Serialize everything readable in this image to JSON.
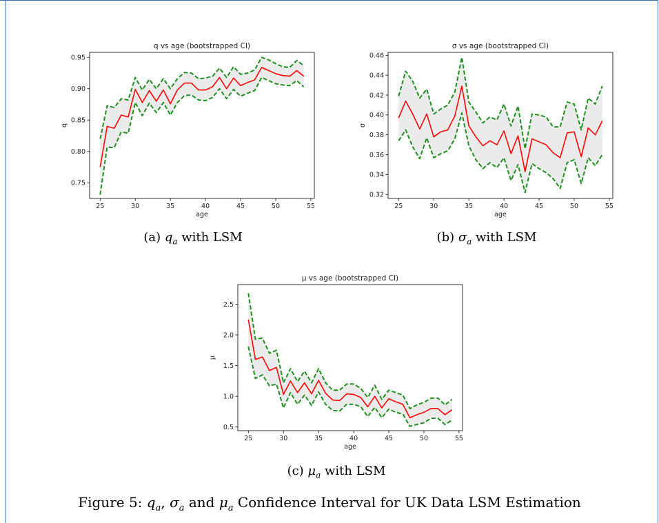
{
  "chart_data": [
    {
      "type": "line",
      "title": "q vs age (bootstrapped CI)",
      "xlabel": "age",
      "ylabel": "q",
      "xlim": [
        23.5,
        55.5
      ],
      "ylim": [
        0.725,
        0.958
      ],
      "xticks": [
        "25",
        "30",
        "35",
        "40",
        "45",
        "50",
        "55"
      ],
      "yticks": [
        "0.75",
        "0.80",
        "0.85",
        "0.90",
        "0.95"
      ],
      "grid": false,
      "x": [
        25,
        26,
        27,
        28,
        29,
        30,
        31,
        32,
        33,
        34,
        35,
        36,
        37,
        38,
        39,
        40,
        41,
        42,
        43,
        44,
        45,
        46,
        47,
        48,
        49,
        50,
        51,
        52,
        53,
        54
      ],
      "series": [
        {
          "role": "estimate",
          "color": "#ff0000",
          "values": [
            0.775,
            0.84,
            0.837,
            0.858,
            0.855,
            0.899,
            0.878,
            0.897,
            0.88,
            0.898,
            0.876,
            0.898,
            0.909,
            0.909,
            0.898,
            0.898,
            0.903,
            0.918,
            0.9,
            0.917,
            0.905,
            0.91,
            0.914,
            0.934,
            0.929,
            0.924,
            0.921,
            0.92,
            0.929,
            0.92
          ]
        },
        {
          "role": "upper",
          "color": "#1f8f1f",
          "values": [
            0.82,
            0.873,
            0.87,
            0.884,
            0.882,
            0.918,
            0.898,
            0.915,
            0.9,
            0.916,
            0.9,
            0.916,
            0.926,
            0.925,
            0.916,
            0.917,
            0.92,
            0.933,
            0.918,
            0.935,
            0.923,
            0.925,
            0.93,
            0.95,
            0.946,
            0.94,
            0.935,
            0.934,
            0.945,
            0.937
          ]
        },
        {
          "role": "lower",
          "color": "#1f8f1f",
          "values": [
            0.731,
            0.807,
            0.806,
            0.831,
            0.829,
            0.878,
            0.857,
            0.877,
            0.862,
            0.878,
            0.858,
            0.878,
            0.889,
            0.89,
            0.882,
            0.881,
            0.886,
            0.9,
            0.884,
            0.899,
            0.888,
            0.893,
            0.897,
            0.918,
            0.913,
            0.908,
            0.906,
            0.905,
            0.913,
            0.903
          ]
        }
      ]
    },
    {
      "type": "line",
      "title": "σ vs age (bootstrapped CI)",
      "xlabel": "age",
      "ylabel": "σ",
      "xlim": [
        23.5,
        55.5
      ],
      "ylim": [
        0.316,
        0.463
      ],
      "xticks": [
        "25",
        "30",
        "35",
        "40",
        "45",
        "50",
        "55"
      ],
      "yticks": [
        "0.32",
        "0.34",
        "0.36",
        "0.38",
        "0.40",
        "0.42",
        "0.44",
        "0.46"
      ],
      "grid": false,
      "x": [
        25,
        26,
        27,
        28,
        29,
        30,
        31,
        32,
        33,
        34,
        35,
        36,
        37,
        38,
        39,
        40,
        41,
        42,
        43,
        44,
        45,
        46,
        47,
        48,
        49,
        50,
        51,
        52,
        53,
        54
      ],
      "series": [
        {
          "role": "estimate",
          "color": "#ff0000",
          "values": [
            0.397,
            0.414,
            0.401,
            0.386,
            0.401,
            0.378,
            0.383,
            0.385,
            0.399,
            0.429,
            0.389,
            0.378,
            0.369,
            0.374,
            0.37,
            0.384,
            0.361,
            0.379,
            0.343,
            0.376,
            0.373,
            0.37,
            0.362,
            0.357,
            0.382,
            0.383,
            0.358,
            0.387,
            0.38,
            0.394
          ]
        },
        {
          "role": "upper",
          "color": "#1f8f1f",
          "values": [
            0.419,
            0.444,
            0.434,
            0.417,
            0.426,
            0.401,
            0.406,
            0.41,
            0.423,
            0.458,
            0.413,
            0.403,
            0.392,
            0.398,
            0.395,
            0.411,
            0.389,
            0.409,
            0.366,
            0.401,
            0.4,
            0.398,
            0.388,
            0.388,
            0.413,
            0.411,
            0.385,
            0.417,
            0.411,
            0.429
          ]
        },
        {
          "role": "lower",
          "color": "#1f8f1f",
          "values": [
            0.374,
            0.385,
            0.368,
            0.356,
            0.377,
            0.357,
            0.361,
            0.364,
            0.376,
            0.402,
            0.369,
            0.355,
            0.346,
            0.352,
            0.347,
            0.357,
            0.334,
            0.35,
            0.322,
            0.351,
            0.346,
            0.342,
            0.336,
            0.326,
            0.352,
            0.355,
            0.331,
            0.357,
            0.349,
            0.36
          ]
        }
      ]
    },
    {
      "type": "line",
      "title": "μ vs age (bootstrapped CI)",
      "xlabel": "age",
      "ylabel": "μ",
      "xlim": [
        23.5,
        55.5
      ],
      "ylim": [
        0.44,
        2.82
      ],
      "xticks": [
        "25",
        "30",
        "35",
        "40",
        "45",
        "50",
        "55"
      ],
      "yticks": [
        "0.5",
        "1.0",
        "1.5",
        "2.0",
        "2.5"
      ],
      "grid": false,
      "x": [
        25,
        26,
        27,
        28,
        29,
        30,
        31,
        32,
        33,
        34,
        35,
        36,
        37,
        38,
        39,
        40,
        41,
        42,
        43,
        44,
        45,
        46,
        47,
        48,
        49,
        50,
        51,
        52,
        53,
        54
      ],
      "series": [
        {
          "role": "estimate",
          "color": "#ff0000",
          "values": [
            2.25,
            1.6,
            1.64,
            1.42,
            1.47,
            1.03,
            1.25,
            1.06,
            1.22,
            1.04,
            1.26,
            1.05,
            0.94,
            0.93,
            1.04,
            1.03,
            0.98,
            0.83,
            1.0,
            0.81,
            0.96,
            0.91,
            0.87,
            0.65,
            0.7,
            0.74,
            0.8,
            0.8,
            0.7,
            0.78
          ]
        },
        {
          "role": "upper",
          "color": "#1f8f1f",
          "values": [
            2.68,
            1.93,
            1.95,
            1.7,
            1.75,
            1.22,
            1.45,
            1.24,
            1.41,
            1.22,
            1.45,
            1.22,
            1.1,
            1.1,
            1.2,
            1.2,
            1.13,
            0.98,
            1.18,
            0.95,
            1.1,
            1.06,
            1.02,
            0.8,
            0.86,
            0.9,
            0.97,
            0.97,
            0.86,
            0.95
          ]
        },
        {
          "role": "lower",
          "color": "#1f8f1f",
          "values": [
            1.81,
            1.29,
            1.35,
            1.17,
            1.2,
            0.81,
            1.06,
            0.87,
            1.02,
            0.85,
            1.07,
            0.87,
            0.77,
            0.76,
            0.87,
            0.87,
            0.83,
            0.67,
            0.82,
            0.65,
            0.79,
            0.74,
            0.71,
            0.51,
            0.54,
            0.57,
            0.64,
            0.64,
            0.54,
            0.61
          ]
        }
      ]
    }
  ],
  "captions": {
    "a": {
      "prefix": "(a) ",
      "symbol": "q",
      "sub": "a",
      "suffix": " with LSM"
    },
    "b": {
      "prefix": "(b) ",
      "symbol": "σ",
      "sub": "a",
      "suffix": " with LSM"
    },
    "c": {
      "prefix": "(c) ",
      "symbol": "μ",
      "sub": "a",
      "suffix": " with LSM"
    }
  },
  "figure_caption": {
    "prefix": "Figure 5: ",
    "s1": "q",
    "s2": "σ",
    "s3": "μ",
    "sub": "a",
    "sep1": ", ",
    "sep2": " and ",
    "suffix": " Confidence Interval for UK Data LSM Estimation"
  },
  "colors": {
    "estimate": "#ff0000",
    "ci_bounds": "#1f8f1f",
    "ci_fill": "#ebebeb"
  }
}
